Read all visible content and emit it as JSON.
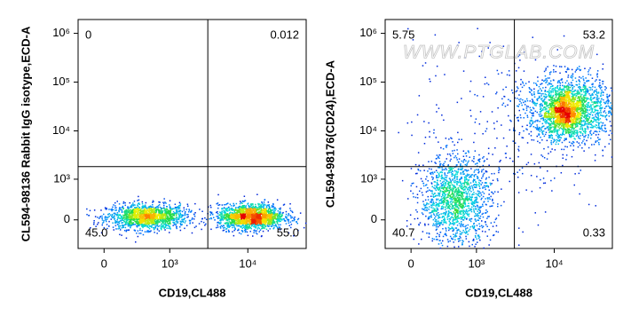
{
  "watermark": "WWW.PTGLAB.COM",
  "chart_data": [
    {
      "type": "flow-density",
      "xlabel": "CD19,CL488",
      "ylabel": "CL594-98136 Rabbit IgG isotype,ECD-A",
      "xlim": [
        -250,
        55000
      ],
      "ylim": [
        -540,
        1920000
      ],
      "xticks": [
        0,
        {
          "value": 1000,
          "label": "10³"
        },
        {
          "value": 10000,
          "label": "10⁴"
        }
      ],
      "yticks": [
        0,
        {
          "value": 1000,
          "label": "10³"
        },
        {
          "value": 10000,
          "label": "10⁴"
        },
        {
          "value": 100000,
          "label": "10⁵"
        },
        {
          "value": 1000000,
          "label": "10⁶"
        }
      ],
      "gate": {
        "x": 3100,
        "y": 1840
      },
      "quadrants": {
        "values": [
          0,
          0.012,
          45.0,
          55.0
        ],
        "value_labels": [
          "0",
          "0.012",
          "45.0",
          "55.0"
        ]
      },
      "populations": [
        {
          "x": [
            20,
            1650
          ],
          "y": [
            -130,
            250
          ],
          "n": 1500
        },
        {
          "x": [
            4100,
            28500
          ],
          "y": [
            -130,
            250
          ],
          "n": 1800
        }
      ]
    },
    {
      "type": "flow-density",
      "xlabel": "CD19,CL488",
      "ylabel": "CL594-98176(CD24),ECD-A",
      "xlim": [
        -250,
        55000
      ],
      "ylim": [
        -540,
        1920000
      ],
      "xticks": [
        0,
        {
          "value": 1000,
          "label": "10³"
        },
        {
          "value": 10000,
          "label": "10⁴"
        }
      ],
      "yticks": [
        0,
        {
          "value": 1000,
          "label": "10³"
        },
        {
          "value": 10000,
          "label": "10⁴"
        },
        {
          "value": 100000,
          "label": "10⁵"
        },
        {
          "value": 1000000,
          "label": "10⁶"
        }
      ],
      "gate": {
        "x": 3100,
        "y": 1840
      },
      "quadrants": {
        "values": [
          5.75,
          53.2,
          40.7,
          0.33
        ],
        "value_labels": [
          "5.75",
          "53.2",
          "40.7",
          "0.33"
        ]
      },
      "populations": [
        {
          "x": [
            78,
            1530
          ],
          "y": [
            -415,
            3170
          ],
          "n": 1500
        },
        {
          "x": [
            4300,
            57600
          ],
          "y": [
            5950,
            137000
          ],
          "n": 1800
        },
        {
          "x": [
            8300,
            20500
          ],
          "y": [
            9040,
            63700
          ],
          "n": 700
        },
        {
          "x": [
            0,
            50000
          ],
          "y": [
            0,
            1000000
          ],
          "n": 300
        }
      ]
    }
  ]
}
